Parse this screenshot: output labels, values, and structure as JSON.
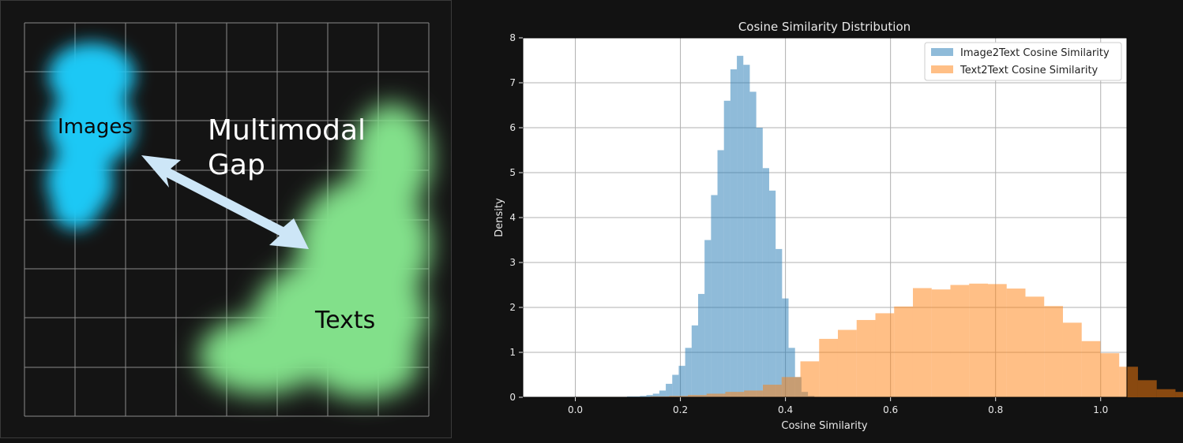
{
  "concept": {
    "images_label": "Images",
    "texts_label": "Texts",
    "gap_line1": "Multimodal",
    "gap_line2": "Gap",
    "colors": {
      "images": "#1ec8f5",
      "texts": "#82e08a",
      "arrow": "#cde6f7",
      "grid": "#8a8a8a"
    }
  },
  "chart_data": {
    "type": "bar",
    "title": "Cosine Similarity Distribution",
    "xlabel": "Cosine Similarity",
    "ylabel": "Density",
    "xlim": [
      -0.1,
      1.05
    ],
    "ylim": [
      0,
      8
    ],
    "xticks": [
      "0.0",
      "0.2",
      "0.4",
      "0.6",
      "0.8",
      "1.0"
    ],
    "yticks": [
      "0",
      "1",
      "2",
      "3",
      "4",
      "5",
      "6",
      "7",
      "8"
    ],
    "grid": true,
    "legend_position": "top-right",
    "series": [
      {
        "name": "Image2Text Cosine Similarity",
        "color": "#1f77b4",
        "bin_start": 0.0,
        "bin_width": 0.0123,
        "values": [
          0.01,
          0.01,
          0.01,
          0.01,
          0.01,
          0.01,
          0.01,
          0.01,
          0.02,
          0.02,
          0.03,
          0.05,
          0.08,
          0.15,
          0.3,
          0.5,
          0.7,
          1.1,
          1.6,
          2.3,
          3.5,
          4.5,
          5.5,
          6.6,
          7.3,
          7.6,
          7.4,
          6.8,
          6.0,
          5.1,
          4.6,
          3.3,
          2.2,
          1.1,
          0.45,
          0.12,
          0.03,
          0.01
        ]
      },
      {
        "name": "Text2Text Cosine Similarity",
        "color": "#ff7f0e",
        "bin_start": 0.0,
        "bin_width": 0.0357,
        "values": [
          0.01,
          0.01,
          0.01,
          0.01,
          0.02,
          0.03,
          0.05,
          0.08,
          0.12,
          0.15,
          0.28,
          0.45,
          0.8,
          1.3,
          1.5,
          1.72,
          1.87,
          2.02,
          2.43,
          2.4,
          2.5,
          2.53,
          2.52,
          2.42,
          2.24,
          2.03,
          1.66,
          1.25,
          0.98,
          0.68,
          0.38,
          0.18,
          0.12
        ]
      }
    ]
  }
}
